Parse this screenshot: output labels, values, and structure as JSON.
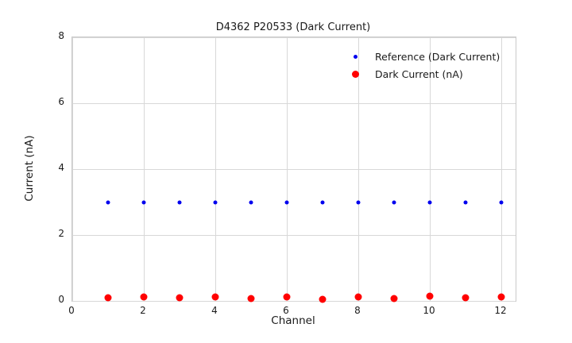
{
  "chart_data": {
    "type": "scatter",
    "title": "D4362 P20533 (Dark Current)",
    "xlabel": "Channel",
    "ylabel": "Current (nA)",
    "xlim": [
      0,
      12.4
    ],
    "ylim": [
      0,
      8
    ],
    "xticks": [
      0,
      2,
      4,
      6,
      8,
      10,
      12
    ],
    "yticks": [
      0,
      2,
      4,
      6,
      8
    ],
    "grid": true,
    "legend_position": "upper right inside, no frame",
    "x": [
      1,
      2,
      3,
      4,
      5,
      6,
      7,
      8,
      9,
      10,
      11,
      12
    ],
    "series": [
      {
        "name": "Reference (Dark Current)",
        "color": "#0000ee",
        "marker_size": 5,
        "values": [
          3.0,
          3.0,
          3.0,
          3.0,
          3.0,
          3.0,
          3.0,
          3.0,
          3.0,
          3.0,
          3.0,
          3.0
        ]
      },
      {
        "name": "Dark Current (nA)",
        "color": "#ff0000",
        "marker_size": 9,
        "values": [
          0.1,
          0.11,
          0.1,
          0.11,
          0.08,
          0.11,
          0.06,
          0.12,
          0.07,
          0.14,
          0.1,
          0.13
        ]
      }
    ]
  },
  "colors": {
    "background": "#ffffff",
    "grid": "#d8d8d8",
    "spine": "#c9c9c9",
    "text": "#1a1a1a"
  }
}
